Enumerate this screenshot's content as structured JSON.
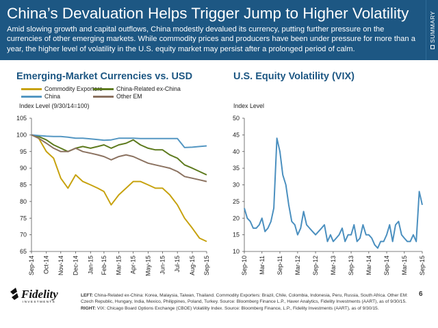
{
  "header": {
    "title": "China’s Devaluation Helps Trigger Jump to Higher Volatility",
    "subtitle": "Amid slowing growth and capital outflows, China modestly devalued its currency, putting further pressure on the currencies of other emerging markets. While commodity prices and producers have been under pressure for more than a year, the higher level of volatility in the U.S. equity market may persist after a prolonged period of calm."
  },
  "side_tab": {
    "label": "SUMMARY"
  },
  "footer": {
    "left_label": "LEFT:",
    "left_text": " China-Related ex-China: Korea, Malaysia, Taiwan, Thailand. Commodity Exporters: Brazil, Chile, Colombia, Indonesia, Peru, Russia, South Africa. Other EM: Czech Republic, Hungary, India, Mexico, Philippines, Poland, Turkey. Source: Bloomberg Finance L.P., Haver Analytics, Fidelity Investments (AART), as of 9/30/15. ",
    "right_label": "RIGHT:",
    "right_text": " VIX: Chicago Board Options Exchange (CBOE) Volatility Index. Source: Bloomberg Finance, L.P., Fidelity Investments (AART), as of 9/30/15.",
    "page_number": "6",
    "logo_text": "Fidelity",
    "logo_sub": "INVESTMENTS"
  },
  "colors": {
    "header_bg": "#1d5783",
    "commodity": "#c7a20e",
    "china": "#5396c2",
    "china_related": "#5d7a1d",
    "other_em": "#8b7260",
    "vix": "#4a8fbf"
  },
  "chart_data": [
    {
      "type": "line",
      "title": "Emerging-Market Currencies vs. USD",
      "ylabel": "Index Level (9/30/14=100)",
      "ylim": [
        65,
        105
      ],
      "yticks": [
        "65",
        "70",
        "75",
        "80",
        "85",
        "90",
        "95",
        "100",
        "105"
      ],
      "xticks": [
        "Sep-14",
        "Oct-14",
        "Nov-14",
        "Dec-14",
        "Jan-15",
        "Feb-15",
        "Mar-15",
        "Apr-15",
        "May-15",
        "Jun-15",
        "Jul-15",
        "Aug-15",
        "Sep-15"
      ],
      "legend": [
        "Commodity Exporters",
        "China-Related ex-China",
        "China",
        "Other EM"
      ],
      "legend_placement": "top-left",
      "grid": false,
      "x": [
        "2014-09-30",
        "2014-10-15",
        "2014-10-31",
        "2014-11-15",
        "2014-11-30",
        "2014-12-15",
        "2014-12-31",
        "2015-01-15",
        "2015-01-31",
        "2015-02-15",
        "2015-02-28",
        "2015-03-15",
        "2015-03-31",
        "2015-04-15",
        "2015-04-30",
        "2015-05-15",
        "2015-05-31",
        "2015-06-15",
        "2015-06-30",
        "2015-07-15",
        "2015-07-31",
        "2015-08-15",
        "2015-08-31",
        "2015-09-15",
        "2015-09-30"
      ],
      "series": [
        {
          "name": "Commodity Exporters",
          "color": "#c7a20e",
          "values": [
            100,
            99,
            95,
            93,
            87,
            84,
            88,
            86,
            85,
            84,
            83,
            79,
            82,
            84,
            86,
            86,
            85,
            84,
            84,
            82,
            79,
            75,
            72,
            69,
            68
          ]
        },
        {
          "name": "China-Related ex-China",
          "color": "#5d7a1d",
          "values": [
            100,
            99.5,
            98.5,
            97,
            96,
            95,
            96,
            96.5,
            96,
            96.5,
            97,
            96,
            97,
            97.5,
            98.5,
            97,
            96,
            95.5,
            95.5,
            94,
            93,
            91,
            90,
            89,
            88
          ]
        },
        {
          "name": "China",
          "color": "#5396c2",
          "values": [
            100,
            99.8,
            99.6,
            99.5,
            99.5,
            99.3,
            99,
            99,
            98.8,
            98.6,
            98.4,
            98.5,
            99,
            99,
            99,
            98.9,
            98.9,
            98.9,
            98.9,
            98.9,
            98.9,
            96.2,
            96.3,
            96.5,
            96.7
          ]
        },
        {
          "name": "Other EM",
          "color": "#8b7260",
          "values": [
            100,
            99,
            97.5,
            96,
            95,
            95,
            96,
            95,
            94.5,
            94,
            93.5,
            92.5,
            93.5,
            94,
            93.5,
            92.5,
            91.5,
            91,
            90.5,
            90,
            89,
            87.5,
            87,
            86.5,
            86
          ]
        }
      ]
    },
    {
      "type": "line",
      "title": "U.S. Equity Volatility (VIX)",
      "ylabel": "Index Level",
      "ylim": [
        10,
        50
      ],
      "yticks": [
        "10",
        "15",
        "20",
        "25",
        "30",
        "35",
        "40",
        "45",
        "50"
      ],
      "xticks": [
        "Sep-10",
        "Mar-11",
        "Sep-11",
        "Mar-12",
        "Sep-12",
        "Mar-13",
        "Sep-13",
        "Mar-14",
        "Sep-14",
        "Mar-15",
        "Sep-15"
      ],
      "grid": false,
      "series": [
        {
          "name": "VIX",
          "color": "#4a8fbf",
          "x": [
            "2010-09",
            "2010-10",
            "2010-11",
            "2010-12",
            "2011-01",
            "2011-02",
            "2011-03",
            "2011-04",
            "2011-05",
            "2011-06",
            "2011-07",
            "2011-08",
            "2011-09",
            "2011-10",
            "2011-11",
            "2011-12",
            "2012-01",
            "2012-02",
            "2012-03",
            "2012-04",
            "2012-05",
            "2012-06",
            "2012-07",
            "2012-08",
            "2012-09",
            "2012-10",
            "2012-11",
            "2012-12",
            "2013-01",
            "2013-02",
            "2013-03",
            "2013-04",
            "2013-05",
            "2013-06",
            "2013-07",
            "2013-08",
            "2013-09",
            "2013-10",
            "2013-11",
            "2013-12",
            "2014-01",
            "2014-02",
            "2014-03",
            "2014-04",
            "2014-05",
            "2014-06",
            "2014-07",
            "2014-08",
            "2014-09",
            "2014-10",
            "2014-11",
            "2014-12",
            "2015-01",
            "2015-02",
            "2015-03",
            "2015-04",
            "2015-05",
            "2015-06",
            "2015-07",
            "2015-08",
            "2015-09"
          ],
          "values": [
            23,
            20,
            19,
            17,
            17,
            18,
            20,
            16,
            17,
            19,
            23,
            44,
            40,
            33,
            30,
            24,
            19,
            18,
            15,
            17,
            22,
            18,
            17,
            16,
            15,
            16,
            17,
            18,
            13,
            15,
            13,
            14,
            15,
            17,
            13,
            15,
            15,
            18,
            13,
            14,
            18,
            15,
            15,
            14,
            12,
            11,
            13,
            13,
            15,
            18,
            13,
            18,
            19,
            15,
            14,
            13,
            13,
            15,
            13,
            28,
            24
          ]
        }
      ]
    }
  ]
}
